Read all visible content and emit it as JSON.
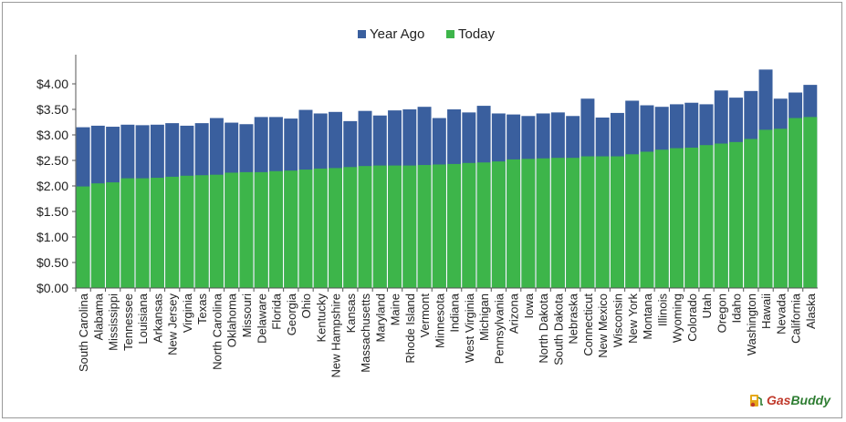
{
  "chart_data": {
    "type": "bar",
    "stacked_overlay": true,
    "yticks": [
      "$0.00",
      "$0.50",
      "$1.00",
      "$1.50",
      "$2.00",
      "$2.50",
      "$3.00",
      "$3.50",
      "$4.00"
    ],
    "ylim": [
      0,
      4.5
    ],
    "grid": false,
    "legend_position": "top-center",
    "categories": [
      "South Carolina",
      "Alabama",
      "Mississippi",
      "Tennessee",
      "Louisiana",
      "Arkansas",
      "New Jersey",
      "Virginia",
      "Texas",
      "North Carolina",
      "Oklahoma",
      "Missouri",
      "Delaware",
      "Florida",
      "Georgia",
      "Ohio",
      "Kentucky",
      "New Hampshire",
      "Kansas",
      "Massachusetts",
      "Maryland",
      "Maine",
      "Rhode Island",
      "Vermont",
      "Minnesota",
      "Indiana",
      "West Virginia",
      "Michigan",
      "Pennsylvania",
      "Arizona",
      "Iowa",
      "North Dakota",
      "South Dakota",
      "Nebraska",
      "Connecticut",
      "New Mexico",
      "Wisconsin",
      "New York",
      "Montana",
      "Illinois",
      "Wyoming",
      "Colorado",
      "Utah",
      "Oregon",
      "Idaho",
      "Washington",
      "Hawaii",
      "Nevada",
      "California",
      "Alaska"
    ],
    "series": [
      {
        "name": "Year Ago",
        "color": "#3a5f9e",
        "values": [
          3.15,
          3.18,
          3.16,
          3.2,
          3.19,
          3.2,
          3.23,
          3.18,
          3.23,
          3.33,
          3.24,
          3.21,
          3.35,
          3.35,
          3.32,
          3.49,
          3.42,
          3.45,
          3.27,
          3.47,
          3.38,
          3.48,
          3.5,
          3.55,
          3.33,
          3.5,
          3.44,
          3.57,
          3.42,
          3.4,
          3.37,
          3.42,
          3.44,
          3.37,
          3.71,
          3.34,
          3.43,
          3.67,
          3.58,
          3.55,
          3.6,
          3.63,
          3.6,
          3.87,
          3.73,
          3.86,
          4.28,
          3.71,
          3.83,
          3.98
        ]
      },
      {
        "name": "Today",
        "color": "#3db54a",
        "values": [
          1.99,
          2.05,
          2.07,
          2.15,
          2.15,
          2.16,
          2.18,
          2.2,
          2.21,
          2.22,
          2.26,
          2.27,
          2.27,
          2.29,
          2.3,
          2.32,
          2.34,
          2.35,
          2.37,
          2.39,
          2.4,
          2.4,
          2.4,
          2.41,
          2.42,
          2.43,
          2.45,
          2.46,
          2.48,
          2.52,
          2.53,
          2.54,
          2.55,
          2.55,
          2.58,
          2.58,
          2.58,
          2.62,
          2.67,
          2.71,
          2.74,
          2.75,
          2.8,
          2.83,
          2.86,
          2.92,
          3.1,
          3.12,
          3.33,
          3.35
        ]
      }
    ]
  },
  "legend": {
    "year_ago": "Year Ago",
    "today": "Today"
  },
  "logo": {
    "gas": "Gas",
    "buddy": "Buddy"
  }
}
